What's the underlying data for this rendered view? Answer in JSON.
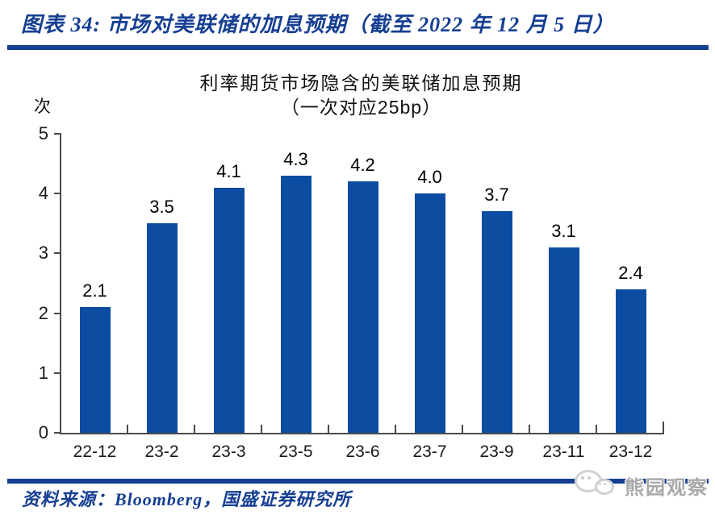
{
  "header": {
    "title": "图表 34:  市场对美联储的加息预期（截至 2022 年 12 月 5 日）"
  },
  "footer": {
    "source_text": "资料来源：Bloomberg，国盛证券研究所"
  },
  "watermark": {
    "icon": "wechat-icon",
    "text": "熊园观察"
  },
  "colors": {
    "accent_blue": "#163f93",
    "bar_blue": "#0c4da2",
    "axis_gray": "#4a4a4a",
    "watermark_gray": "#a9a9a9"
  },
  "chart_data": {
    "type": "bar",
    "title": "利率期货市场隐含的美联储加息预期",
    "subtitle": "（一次对应25bp）",
    "unit_label": "次",
    "categories": [
      "22-12",
      "23-2",
      "23-3",
      "23-5",
      "23-6",
      "23-7",
      "23-9",
      "23-11",
      "23-12"
    ],
    "values": [
      2.1,
      3.5,
      4.1,
      4.3,
      4.2,
      4.0,
      3.7,
      3.1,
      2.4
    ],
    "value_labels": [
      "2.1",
      "3.5",
      "4.1",
      "4.3",
      "4.2",
      "4.0",
      "3.7",
      "3.1",
      "2.4"
    ],
    "xlabel": "",
    "ylabel": "次",
    "ylim": [
      0,
      5
    ],
    "yticks": [
      0,
      1,
      2,
      3,
      4,
      5
    ],
    "grid": false,
    "legend": "none"
  }
}
